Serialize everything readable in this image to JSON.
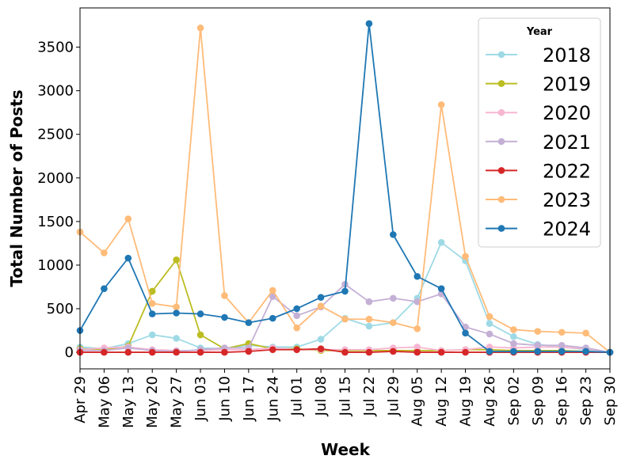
{
  "chart_data": {
    "type": "line",
    "title": "",
    "xlabel": "Week",
    "ylabel": "Total Number of Posts",
    "ylim": [
      -190,
      3950
    ],
    "yticks": [
      0,
      500,
      1000,
      1500,
      2000,
      2500,
      3000,
      3500
    ],
    "categories": [
      "Apr 29",
      "May 06",
      "May 13",
      "May 20",
      "May 27",
      "Jun 03",
      "Jun 10",
      "Jun 17",
      "Jun 24",
      "Jul 01",
      "Jul 08",
      "Jul 15",
      "Jul 22",
      "Jul 29",
      "Aug 05",
      "Aug 12",
      "Aug 19",
      "Aug 26",
      "Sep 02",
      "Sep 09",
      "Sep 16",
      "Sep 23",
      "Sep 30"
    ],
    "legend_title": "Year",
    "legend_position": "upper-right",
    "series": [
      {
        "name": "2018",
        "color": "#9edae5",
        "values": [
          60,
          40,
          100,
          200,
          160,
          50,
          40,
          80,
          60,
          60,
          150,
          390,
          300,
          340,
          620,
          1260,
          1050,
          330,
          180,
          90,
          60,
          30,
          0
        ]
      },
      {
        "name": "2019",
        "color": "#bcbd22",
        "values": [
          40,
          30,
          70,
          700,
          1060,
          200,
          40,
          100,
          40,
          40,
          20,
          20,
          20,
          20,
          20,
          20,
          30,
          30,
          20,
          20,
          20,
          10,
          0
        ]
      },
      {
        "name": "2020",
        "color": "#f7b6d2",
        "values": [
          30,
          50,
          60,
          30,
          20,
          20,
          30,
          30,
          50,
          30,
          30,
          30,
          30,
          50,
          60,
          20,
          30,
          60,
          50,
          60,
          60,
          40,
          0
        ]
      },
      {
        "name": "2021",
        "color": "#c5b0d5",
        "values": [
          20,
          20,
          50,
          20,
          10,
          30,
          50,
          50,
          640,
          420,
          520,
          780,
          580,
          620,
          580,
          670,
          290,
          210,
          100,
          80,
          80,
          50,
          0
        ]
      },
      {
        "name": "2022",
        "color": "#d62728",
        "values": [
          0,
          0,
          0,
          0,
          0,
          0,
          0,
          10,
          30,
          30,
          40,
          0,
          0,
          10,
          0,
          0,
          0,
          0,
          0,
          0,
          0,
          0,
          0
        ]
      },
      {
        "name": "2023",
        "color": "#ffbb78",
        "values": [
          1380,
          1140,
          1530,
          560,
          520,
          3720,
          650,
          340,
          710,
          280,
          530,
          380,
          380,
          340,
          270,
          2840,
          1100,
          410,
          260,
          240,
          230,
          220,
          0
        ]
      },
      {
        "name": "2024",
        "color": "#1f77b4",
        "values": [
          250,
          730,
          1080,
          440,
          450,
          440,
          400,
          340,
          390,
          500,
          630,
          700,
          3770,
          1350,
          870,
          730,
          220,
          10,
          10,
          10,
          10,
          10,
          0
        ]
      }
    ]
  }
}
